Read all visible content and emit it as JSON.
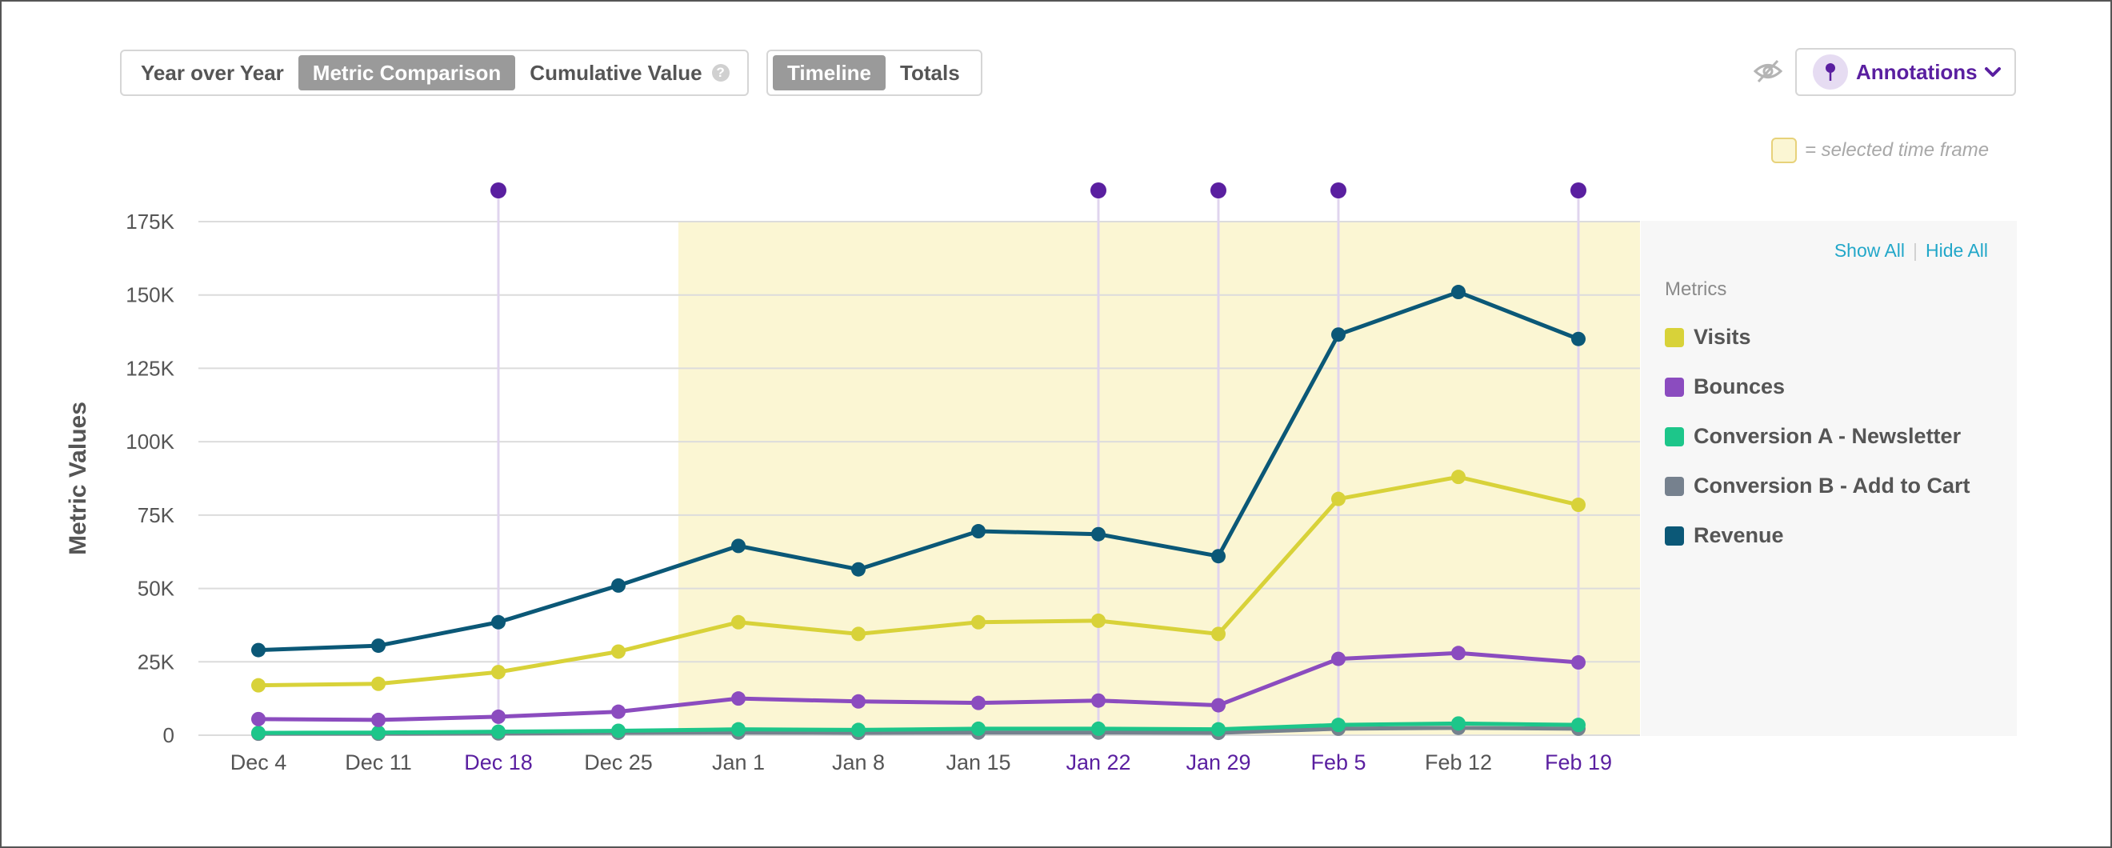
{
  "toolbar": {
    "view_modes": [
      "Year over Year",
      "Metric Comparison",
      "Cumulative Value"
    ],
    "view_modes_active": "Metric Comparison",
    "display_modes": [
      "Timeline",
      "Totals"
    ],
    "display_modes_active": "Timeline",
    "help_icon": "?",
    "annotations_label": "Annotations",
    "icons": [
      "eye-hidden-icon",
      "pin-icon",
      "chevron-down-icon"
    ]
  },
  "time_frame_note": "= selected time frame",
  "legend": {
    "show_all": "Show All",
    "hide_all": "Hide All",
    "title": "Metrics"
  },
  "colors": {
    "Visits": "#d8d239",
    "Bounces": "#8b4cbf",
    "Conversion A - Newsletter": "#1dc68a",
    "Conversion B - Add to Cart": "#76818e",
    "Revenue": "#0b5877",
    "annotation": "#5a1fa0",
    "selected_time_frame": "#fbf6d3",
    "axis_text": "#555555",
    "annotated_tick": "#5a1fa0",
    "link": "#22a7c9"
  },
  "chart_data": {
    "type": "line",
    "title": "",
    "xlabel": "",
    "ylabel": "Metric Values",
    "categories": [
      "Dec 4",
      "Dec 11",
      "Dec 18",
      "Dec 25",
      "Jan 1",
      "Jan 8",
      "Jan 15",
      "Jan 22",
      "Jan 29",
      "Feb 5",
      "Feb 12",
      "Feb 19"
    ],
    "ylim": [
      0,
      175000
    ],
    "yticks": [
      0,
      25000,
      50000,
      75000,
      100000,
      125000,
      150000,
      175000
    ],
    "ytick_labels": [
      "0",
      "25K",
      "50K",
      "75K",
      "100K",
      "125K",
      "150K",
      "175K"
    ],
    "grid": true,
    "legend_position": "right",
    "annotated_dates": [
      "Dec 18",
      "Jan 22",
      "Jan 29",
      "Feb 5",
      "Feb 19"
    ],
    "selected_time_frame": [
      "Dec 25",
      "Feb 19"
    ],
    "series": [
      {
        "name": "Visits",
        "values": [
          17000,
          17500,
          21500,
          28500,
          38500,
          34500,
          38500,
          39000,
          34500,
          80500,
          88000,
          78500
        ]
      },
      {
        "name": "Bounces",
        "values": [
          5500,
          5200,
          6300,
          8000,
          12500,
          11500,
          11000,
          11800,
          10200,
          26000,
          28000,
          24800
        ]
      },
      {
        "name": "Conversion A - Newsletter",
        "values": [
          800,
          900,
          1200,
          1500,
          2000,
          1800,
          2200,
          2200,
          2000,
          3500,
          4000,
          3500
        ]
      },
      {
        "name": "Conversion B - Add to Cart",
        "values": [
          500,
          500,
          600,
          800,
          900,
          800,
          900,
          900,
          800,
          2200,
          2500,
          2200
        ]
      },
      {
        "name": "Revenue",
        "values": [
          29000,
          30500,
          38500,
          51000,
          64500,
          56500,
          69500,
          68500,
          61000,
          136500,
          151000,
          135000
        ]
      }
    ]
  }
}
